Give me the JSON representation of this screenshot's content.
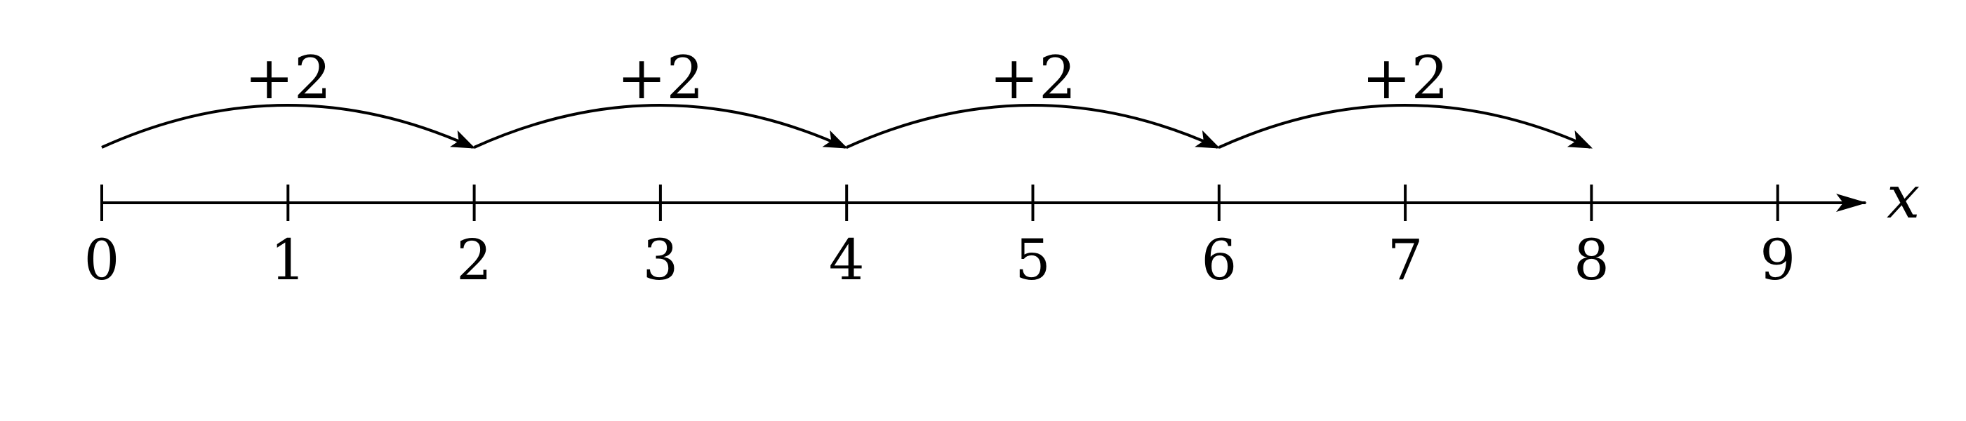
{
  "number_line": {
    "min": 0,
    "max": 9,
    "ticks": [
      0,
      1,
      2,
      3,
      4,
      5,
      6,
      7,
      8,
      9
    ],
    "tick_labels": [
      "0",
      "1",
      "2",
      "3",
      "4",
      "5",
      "6",
      "7",
      "8",
      "9"
    ],
    "axis_label": "x",
    "line_color": "#000000"
  },
  "jumps": [
    {
      "from": 0,
      "to": 2,
      "label": "+2"
    },
    {
      "from": 2,
      "to": 4,
      "label": "+2"
    },
    {
      "from": 4,
      "to": 6,
      "label": "+2"
    },
    {
      "from": 6,
      "to": 8,
      "label": "+2"
    }
  ]
}
